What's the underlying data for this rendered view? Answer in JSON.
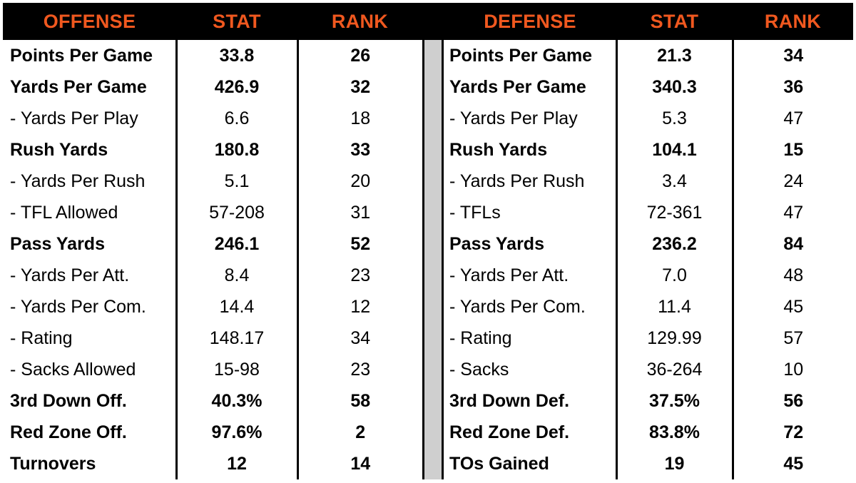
{
  "offense": {
    "headers": {
      "label": "OFFENSE",
      "stat": "STAT",
      "rank": "RANK"
    },
    "rows": [
      {
        "label": "Points Per Game",
        "stat": "33.8",
        "rank": "26",
        "bold": true
      },
      {
        "label": "Yards Per Game",
        "stat": "426.9",
        "rank": "32",
        "bold": true
      },
      {
        "label": "- Yards Per Play",
        "stat": "6.6",
        "rank": "18",
        "bold": false
      },
      {
        "label": "Rush Yards",
        "stat": "180.8",
        "rank": "33",
        "bold": true
      },
      {
        "label": "- Yards Per Rush",
        "stat": "5.1",
        "rank": "20",
        "bold": false
      },
      {
        "label": "- TFL Allowed",
        "stat": "57-208",
        "rank": "31",
        "bold": false
      },
      {
        "label": "Pass Yards",
        "stat": "246.1",
        "rank": "52",
        "bold": true
      },
      {
        "label": "- Yards Per Att.",
        "stat": "8.4",
        "rank": "23",
        "bold": false
      },
      {
        "label": "- Yards Per Com.",
        "stat": "14.4",
        "rank": "12",
        "bold": false
      },
      {
        "label": "- Rating",
        "stat": "148.17",
        "rank": "34",
        "bold": false
      },
      {
        "label": "- Sacks Allowed",
        "stat": "15-98",
        "rank": "23",
        "bold": false
      },
      {
        "label": "3rd Down Off.",
        "stat": "40.3%",
        "rank": "58",
        "bold": true
      },
      {
        "label": "Red Zone Off.",
        "stat": "97.6%",
        "rank": "2",
        "bold": true
      },
      {
        "label": "Turnovers",
        "stat": "12",
        "rank": "14",
        "bold": true
      }
    ]
  },
  "defense": {
    "headers": {
      "label": "DEFENSE",
      "stat": "STAT",
      "rank": "RANK"
    },
    "rows": [
      {
        "label": "Points Per Game",
        "stat": "21.3",
        "rank": "34",
        "bold": true
      },
      {
        "label": "Yards Per Game",
        "stat": "340.3",
        "rank": "36",
        "bold": true
      },
      {
        "label": "- Yards Per Play",
        "stat": "5.3",
        "rank": "47",
        "bold": false
      },
      {
        "label": "Rush Yards",
        "stat": "104.1",
        "rank": "15",
        "bold": true
      },
      {
        "label": "- Yards Per Rush",
        "stat": "3.4",
        "rank": "24",
        "bold": false
      },
      {
        "label": "- TFLs",
        "stat": "72-361",
        "rank": "47",
        "bold": false
      },
      {
        "label": "Pass Yards",
        "stat": "236.2",
        "rank": "84",
        "bold": true
      },
      {
        "label": "- Yards Per Att.",
        "stat": "7.0",
        "rank": "48",
        "bold": false
      },
      {
        "label": "- Yards Per Com.",
        "stat": "11.4",
        "rank": "45",
        "bold": false
      },
      {
        "label": "- Rating",
        "stat": "129.99",
        "rank": "57",
        "bold": false
      },
      {
        "label": "- Sacks",
        "stat": "36-264",
        "rank": "10",
        "bold": false
      },
      {
        "label": "3rd Down Def.",
        "stat": "37.5%",
        "rank": "56",
        "bold": true
      },
      {
        "label": "Red Zone Def.",
        "stat": "83.8%",
        "rank": "72",
        "bold": true
      },
      {
        "label": "TOs Gained",
        "stat": "19",
        "rank": "45",
        "bold": true
      }
    ]
  },
  "colors": {
    "header_text": "#f0581f",
    "header_bg": "#000000",
    "divider": "#cfcfcf"
  }
}
